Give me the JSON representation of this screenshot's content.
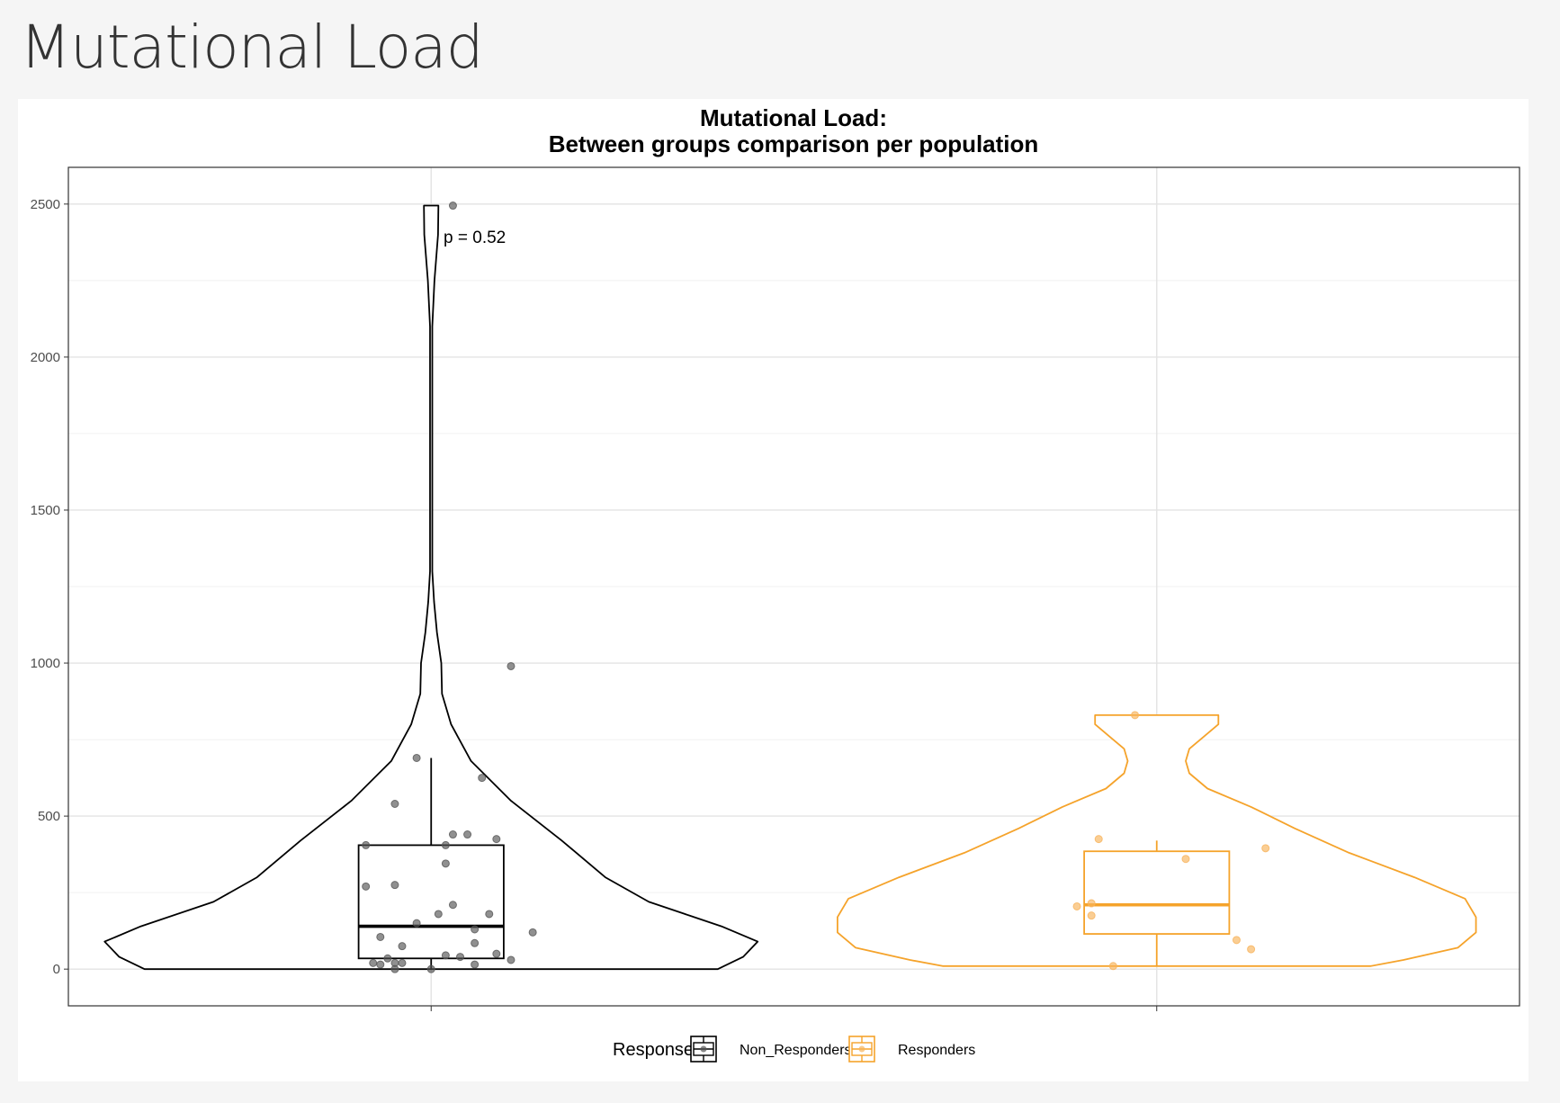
{
  "page": {
    "heading": "Mutational Load"
  },
  "chart_data": {
    "type": "violin",
    "title_lines": [
      "Mutational Load:",
      "Between groups comparison per population"
    ],
    "xlabel": "",
    "ylabel": "",
    "ylim": [
      -120,
      2620
    ],
    "y_ticks": [
      0,
      500,
      1000,
      1500,
      2000,
      2500
    ],
    "y_tick_labels": [
      "0",
      "500",
      "1000",
      "1500",
      "2000",
      "2500"
    ],
    "grid": true,
    "annotation": {
      "text": "p = 0.52",
      "x_group": 0.28,
      "y": 2390
    },
    "legend": {
      "title": "Response",
      "position": "bottom",
      "entries": [
        "Non_Responders",
        "Responders"
      ]
    },
    "groups": [
      {
        "name": "Non_Responders",
        "color": "#000000",
        "point_color": "#555555",
        "box": {
          "q1": 35,
          "median": 140,
          "q3": 405,
          "whisker_low": 0,
          "whisker_high": 690
        },
        "violin": {
          "y_min": 0,
          "y_max": 2495,
          "profile": [
            [
              0,
              0.79
            ],
            [
              40,
              0.86
            ],
            [
              90,
              0.9
            ],
            [
              140,
              0.8
            ],
            [
              220,
              0.6
            ],
            [
              300,
              0.48
            ],
            [
              420,
              0.36
            ],
            [
              550,
              0.22
            ],
            [
              680,
              0.11
            ],
            [
              800,
              0.055
            ],
            [
              900,
              0.03
            ],
            [
              1000,
              0.028
            ],
            [
              1100,
              0.016
            ],
            [
              1200,
              0.008
            ],
            [
              1300,
              0.003
            ],
            [
              1500,
              0.003
            ],
            [
              2100,
              0.003
            ],
            [
              2250,
              0.009
            ],
            [
              2400,
              0.019
            ],
            [
              2495,
              0.02
            ]
          ]
        },
        "points": [
          [
            -0.08,
            20
          ],
          [
            -0.07,
            15
          ],
          [
            -0.05,
            20
          ],
          [
            -0.06,
            35
          ],
          [
            -0.05,
            0
          ],
          [
            -0.04,
            20
          ],
          [
            -0.04,
            75
          ],
          [
            -0.07,
            105
          ],
          [
            -0.02,
            150
          ],
          [
            0.01,
            180
          ],
          [
            0.03,
            210
          ],
          [
            0.06,
            130
          ],
          [
            0.08,
            180
          ],
          [
            0.06,
            85
          ],
          [
            0.02,
            45
          ],
          [
            0.04,
            40
          ],
          [
            0.06,
            15
          ],
          [
            0.09,
            50
          ],
          [
            0.11,
            30
          ],
          [
            0.14,
            120
          ],
          [
            0.0,
            0
          ],
          [
            -0.09,
            270
          ],
          [
            -0.05,
            275
          ],
          [
            0.02,
            345
          ],
          [
            0.02,
            405
          ],
          [
            0.03,
            440
          ],
          [
            0.05,
            440
          ],
          [
            0.09,
            425
          ],
          [
            -0.09,
            405
          ],
          [
            -0.05,
            540
          ],
          [
            -0.02,
            690
          ],
          [
            0.07,
            625
          ],
          [
            0.11,
            990
          ],
          [
            0.03,
            2495
          ]
        ]
      },
      {
        "name": "Responders",
        "color": "#f5a32b",
        "point_color": "#f7b35b",
        "box": {
          "q1": 115,
          "median": 210,
          "q3": 385,
          "whisker_low": 10,
          "whisker_high": 420
        },
        "violin": {
          "y_min": 10,
          "y_max": 830,
          "profile": [
            [
              10,
              0.59
            ],
            [
              30,
              0.68
            ],
            [
              70,
              0.83
            ],
            [
              120,
              0.88
            ],
            [
              170,
              0.88
            ],
            [
              230,
              0.85
            ],
            [
              300,
              0.71
            ],
            [
              380,
              0.53
            ],
            [
              460,
              0.38
            ],
            [
              530,
              0.26
            ],
            [
              590,
              0.14
            ],
            [
              640,
              0.09
            ],
            [
              680,
              0.08
            ],
            [
              720,
              0.09
            ],
            [
              760,
              0.13
            ],
            [
              800,
              0.17
            ],
            [
              830,
              0.17
            ]
          ]
        },
        "points": [
          [
            -0.11,
            205
          ],
          [
            -0.09,
            215
          ],
          [
            -0.09,
            175
          ],
          [
            -0.08,
            425
          ],
          [
            0.04,
            360
          ],
          [
            0.11,
            95
          ],
          [
            0.13,
            65
          ],
          [
            0.15,
            395
          ],
          [
            -0.06,
            10
          ],
          [
            -0.03,
            830
          ]
        ]
      }
    ]
  }
}
